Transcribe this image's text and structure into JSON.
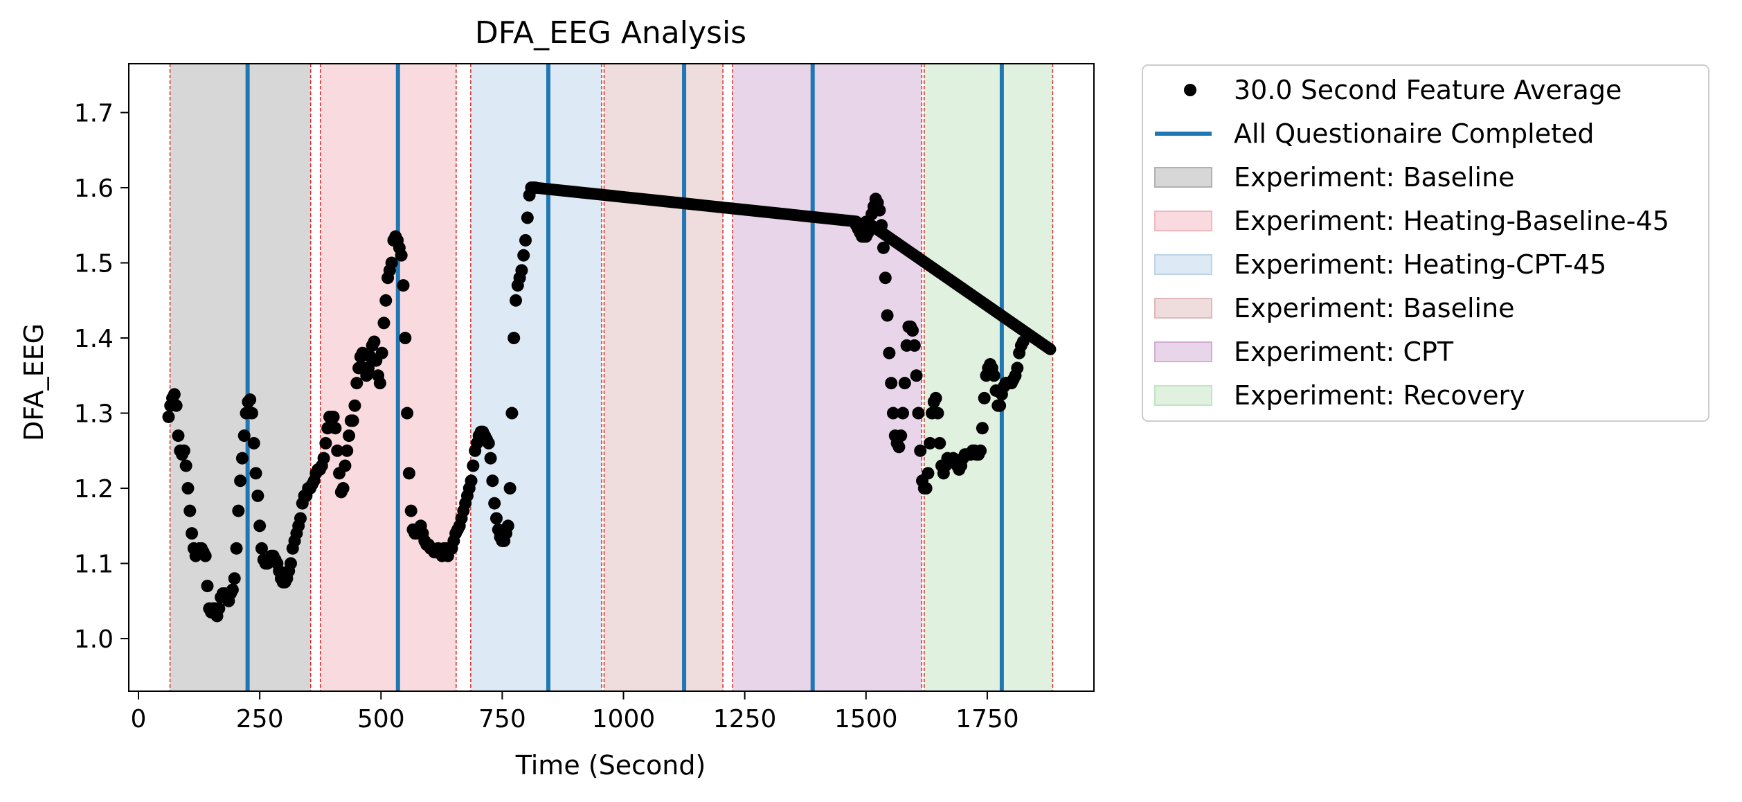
{
  "chart_data": {
    "type": "scatter",
    "title": "DFA_EEG Analysis",
    "xlabel": "Time (Second)",
    "ylabel": "DFA_EEG",
    "xlim": [
      -20,
      1970
    ],
    "ylim": [
      0.93,
      1.765
    ],
    "xticks": [
      0,
      250,
      500,
      750,
      1000,
      1250,
      1500,
      1750
    ],
    "xtick_labels": [
      "0",
      "250",
      "500",
      "750",
      "1000",
      "1250",
      "1500",
      "1750"
    ],
    "yticks": [
      1.0,
      1.1,
      1.2,
      1.3,
      1.4,
      1.5,
      1.6,
      1.7
    ],
    "ytick_labels": [
      "1.0",
      "1.1",
      "1.2",
      "1.3",
      "1.4",
      "1.5",
      "1.6",
      "1.7"
    ],
    "grid": false,
    "legend_position": "outside-right",
    "series": [
      {
        "name": "30.0 Second Feature Average",
        "kind": "scatter",
        "color": "#000000",
        "points": [
          [
            62,
            1.295
          ],
          [
            66,
            1.31
          ],
          [
            70,
            1.32
          ],
          [
            74,
            1.325
          ],
          [
            78,
            1.31
          ],
          [
            82,
            1.27
          ],
          [
            86,
            1.25
          ],
          [
            90,
            1.245
          ],
          [
            94,
            1.25
          ],
          [
            98,
            1.23
          ],
          [
            102,
            1.2
          ],
          [
            106,
            1.17
          ],
          [
            110,
            1.14
          ],
          [
            114,
            1.12
          ],
          [
            118,
            1.11
          ],
          [
            122,
            1.115
          ],
          [
            126,
            1.12
          ],
          [
            130,
            1.12
          ],
          [
            134,
            1.115
          ],
          [
            138,
            1.11
          ],
          [
            142,
            1.07
          ],
          [
            146,
            1.04
          ],
          [
            150,
            1.035
          ],
          [
            154,
            1.04
          ],
          [
            158,
            1.04
          ],
          [
            162,
            1.03
          ],
          [
            166,
            1.04
          ],
          [
            170,
            1.055
          ],
          [
            174,
            1.06
          ],
          [
            178,
            1.06
          ],
          [
            182,
            1.055
          ],
          [
            186,
            1.05
          ],
          [
            190,
            1.06
          ],
          [
            194,
            1.065
          ],
          [
            198,
            1.08
          ],
          [
            202,
            1.12
          ],
          [
            206,
            1.17
          ],
          [
            210,
            1.21
          ],
          [
            214,
            1.24
          ],
          [
            218,
            1.27
          ],
          [
            222,
            1.3
          ],
          [
            226,
            1.315
          ],
          [
            230,
            1.318
          ],
          [
            234,
            1.3
          ],
          [
            238,
            1.26
          ],
          [
            242,
            1.22
          ],
          [
            246,
            1.19
          ],
          [
            250,
            1.15
          ],
          [
            254,
            1.12
          ],
          [
            258,
            1.105
          ],
          [
            262,
            1.1
          ],
          [
            266,
            1.1
          ],
          [
            270,
            1.105
          ],
          [
            274,
            1.11
          ],
          [
            278,
            1.11
          ],
          [
            282,
            1.105
          ],
          [
            286,
            1.1
          ],
          [
            290,
            1.09
          ],
          [
            294,
            1.08
          ],
          [
            298,
            1.075
          ],
          [
            302,
            1.075
          ],
          [
            306,
            1.08
          ],
          [
            310,
            1.09
          ],
          [
            314,
            1.1
          ],
          [
            318,
            1.12
          ],
          [
            322,
            1.13
          ],
          [
            326,
            1.14
          ],
          [
            330,
            1.15
          ],
          [
            334,
            1.16
          ],
          [
            338,
            1.18
          ],
          [
            342,
            1.19
          ],
          [
            346,
            1.19
          ],
          [
            350,
            1.2
          ],
          [
            354,
            1.2
          ],
          [
            358,
            1.205
          ],
          [
            362,
            1.21
          ],
          [
            366,
            1.22
          ],
          [
            370,
            1.225
          ],
          [
            374,
            1.225
          ],
          [
            378,
            1.23
          ],
          [
            382,
            1.24
          ],
          [
            386,
            1.26
          ],
          [
            390,
            1.28
          ],
          [
            394,
            1.295
          ],
          [
            398,
            1.295
          ],
          [
            402,
            1.295
          ],
          [
            406,
            1.28
          ],
          [
            410,
            1.25
          ],
          [
            414,
            1.22
          ],
          [
            418,
            1.195
          ],
          [
            422,
            1.2
          ],
          [
            426,
            1.23
          ],
          [
            430,
            1.25
          ],
          [
            434,
            1.27
          ],
          [
            438,
            1.29
          ],
          [
            442,
            1.29
          ],
          [
            446,
            1.31
          ],
          [
            450,
            1.34
          ],
          [
            454,
            1.36
          ],
          [
            458,
            1.375
          ],
          [
            462,
            1.38
          ],
          [
            466,
            1.36
          ],
          [
            470,
            1.35
          ],
          [
            474,
            1.36
          ],
          [
            478,
            1.375
          ],
          [
            482,
            1.39
          ],
          [
            486,
            1.395
          ],
          [
            490,
            1.37
          ],
          [
            494,
            1.35
          ],
          [
            498,
            1.34
          ],
          [
            502,
            1.38
          ],
          [
            506,
            1.42
          ],
          [
            510,
            1.45
          ],
          [
            514,
            1.48
          ],
          [
            518,
            1.49
          ],
          [
            522,
            1.5
          ],
          [
            526,
            1.53
          ],
          [
            530,
            1.535
          ],
          [
            534,
            1.53
          ],
          [
            538,
            1.52
          ],
          [
            542,
            1.51
          ],
          [
            546,
            1.47
          ],
          [
            550,
            1.4
          ],
          [
            554,
            1.3
          ],
          [
            558,
            1.22
          ],
          [
            562,
            1.17
          ],
          [
            566,
            1.145
          ],
          [
            570,
            1.14
          ],
          [
            574,
            1.14
          ],
          [
            578,
            1.145
          ],
          [
            582,
            1.15
          ],
          [
            586,
            1.14
          ],
          [
            590,
            1.13
          ],
          [
            594,
            1.125
          ],
          [
            598,
            1.125
          ],
          [
            602,
            1.12
          ],
          [
            606,
            1.12
          ],
          [
            610,
            1.115
          ],
          [
            614,
            1.115
          ],
          [
            618,
            1.12
          ],
          [
            622,
            1.115
          ],
          [
            626,
            1.11
          ],
          [
            630,
            1.12
          ],
          [
            634,
            1.12
          ],
          [
            638,
            1.11
          ],
          [
            642,
            1.12
          ],
          [
            646,
            1.12
          ],
          [
            650,
            1.13
          ],
          [
            654,
            1.14
          ],
          [
            658,
            1.145
          ],
          [
            662,
            1.15
          ],
          [
            666,
            1.16
          ],
          [
            670,
            1.17
          ],
          [
            674,
            1.18
          ],
          [
            678,
            1.19
          ],
          [
            682,
            1.2
          ],
          [
            686,
            1.21
          ],
          [
            690,
            1.23
          ],
          [
            694,
            1.25
          ],
          [
            698,
            1.26
          ],
          [
            702,
            1.27
          ],
          [
            706,
            1.275
          ],
          [
            710,
            1.275
          ],
          [
            714,
            1.27
          ],
          [
            718,
            1.265
          ],
          [
            722,
            1.26
          ],
          [
            726,
            1.24
          ],
          [
            730,
            1.21
          ],
          [
            734,
            1.18
          ],
          [
            738,
            1.16
          ],
          [
            742,
            1.145
          ],
          [
            746,
            1.135
          ],
          [
            750,
            1.13
          ],
          [
            754,
            1.13
          ],
          [
            758,
            1.14
          ],
          [
            762,
            1.15
          ],
          [
            766,
            1.2
          ],
          [
            770,
            1.3
          ],
          [
            774,
            1.4
          ],
          [
            778,
            1.45
          ],
          [
            782,
            1.47
          ],
          [
            786,
            1.48
          ],
          [
            790,
            1.49
          ],
          [
            794,
            1.51
          ],
          [
            798,
            1.53
          ],
          [
            802,
            1.56
          ],
          [
            806,
            1.59
          ],
          [
            810,
            1.6
          ],
          [
            814,
            1.6
          ],
          [
            818,
            1.6
          ]
        ],
        "line_segments": [
          {
            "x0": 818,
            "y0": 1.6,
            "x1": 1480,
            "y1": 1.555
          },
          {
            "x0": 1500,
            "y0": 1.555,
            "x1": 1880,
            "y1": 1.385
          }
        ],
        "points_tail": [
          [
            1480,
            1.55
          ],
          [
            1484,
            1.545
          ],
          [
            1488,
            1.54
          ],
          [
            1492,
            1.535
          ],
          [
            1496,
            1.535
          ],
          [
            1500,
            1.535
          ],
          [
            1504,
            1.54
          ],
          [
            1508,
            1.55
          ],
          [
            1512,
            1.565
          ],
          [
            1516,
            1.575
          ],
          [
            1520,
            1.585
          ],
          [
            1524,
            1.58
          ],
          [
            1528,
            1.57
          ],
          [
            1532,
            1.55
          ],
          [
            1536,
            1.52
          ],
          [
            1540,
            1.48
          ],
          [
            1544,
            1.43
          ],
          [
            1548,
            1.38
          ],
          [
            1552,
            1.34
          ],
          [
            1556,
            1.3
          ],
          [
            1560,
            1.27
          ],
          [
            1564,
            1.26
          ],
          [
            1568,
            1.255
          ],
          [
            1572,
            1.27
          ],
          [
            1576,
            1.3
          ],
          [
            1580,
            1.34
          ],
          [
            1584,
            1.39
          ],
          [
            1588,
            1.415
          ],
          [
            1592,
            1.415
          ],
          [
            1596,
            1.41
          ],
          [
            1600,
            1.39
          ],
          [
            1604,
            1.35
          ],
          [
            1608,
            1.3
          ],
          [
            1612,
            1.25
          ],
          [
            1616,
            1.21
          ],
          [
            1620,
            1.2
          ],
          [
            1624,
            1.2
          ],
          [
            1628,
            1.22
          ],
          [
            1632,
            1.26
          ],
          [
            1636,
            1.3
          ],
          [
            1640,
            1.315
          ],
          [
            1644,
            1.32
          ],
          [
            1648,
            1.3
          ],
          [
            1652,
            1.26
          ],
          [
            1656,
            1.23
          ],
          [
            1660,
            1.22
          ],
          [
            1664,
            1.23
          ],
          [
            1668,
            1.24
          ],
          [
            1672,
            1.235
          ],
          [
            1676,
            1.235
          ],
          [
            1680,
            1.24
          ],
          [
            1684,
            1.235
          ],
          [
            1688,
            1.23
          ],
          [
            1692,
            1.225
          ],
          [
            1696,
            1.23
          ],
          [
            1700,
            1.24
          ],
          [
            1704,
            1.245
          ],
          [
            1708,
            1.245
          ],
          [
            1712,
            1.245
          ],
          [
            1716,
            1.245
          ],
          [
            1720,
            1.25
          ],
          [
            1724,
            1.25
          ],
          [
            1728,
            1.245
          ],
          [
            1732,
            1.245
          ],
          [
            1736,
            1.25
          ],
          [
            1740,
            1.28
          ],
          [
            1744,
            1.32
          ],
          [
            1748,
            1.35
          ],
          [
            1752,
            1.36
          ],
          [
            1756,
            1.365
          ],
          [
            1760,
            1.36
          ],
          [
            1764,
            1.35
          ],
          [
            1768,
            1.33
          ],
          [
            1772,
            1.31
          ],
          [
            1776,
            1.31
          ],
          [
            1780,
            1.325
          ],
          [
            1784,
            1.335
          ],
          [
            1788,
            1.34
          ],
          [
            1792,
            1.34
          ],
          [
            1796,
            1.34
          ],
          [
            1800,
            1.34
          ],
          [
            1804,
            1.345
          ],
          [
            1808,
            1.35
          ],
          [
            1812,
            1.36
          ],
          [
            1816,
            1.38
          ],
          [
            1820,
            1.39
          ],
          [
            1824,
            1.395
          ]
        ]
      },
      {
        "name": "All Questionaire Completed",
        "kind": "vline",
        "color": "#1f77b4",
        "x": [
          225,
          535,
          845,
          1125,
          1390,
          1780
        ]
      }
    ],
    "spans": [
      {
        "name": "Experiment: Baseline",
        "x0": 65,
        "x1": 355,
        "color": "#b0b0b0",
        "opacity": 0.5
      },
      {
        "name": "Experiment: Heating-Baseline-45",
        "x0": 375,
        "x1": 655,
        "color": "#f4b6bd",
        "opacity": 0.5
      },
      {
        "name": "Experiment: Heating-CPT-45",
        "x0": 685,
        "x1": 955,
        "color": "#bcd3ea",
        "opacity": 0.5
      },
      {
        "name": "Experiment: Baseline",
        "x0": 960,
        "x1": 1205,
        "color": "#dfb9b9",
        "opacity": 0.5
      },
      {
        "name": "Experiment: CPT",
        "x0": 1225,
        "x1": 1615,
        "color": "#d3acd6",
        "opacity": 0.5
      },
      {
        "name": "Experiment: Recovery",
        "x0": 1620,
        "x1": 1885,
        "color": "#c1e4c1",
        "opacity": 0.5
      }
    ],
    "boundary_lines": [
      65,
      355,
      375,
      655,
      685,
      955,
      960,
      1205,
      1225,
      1615,
      1620,
      1885
    ],
    "boundary_color": "#d62728",
    "legend": [
      {
        "label": "30.0 Second Feature Average",
        "marker": "dot",
        "color": "#000000"
      },
      {
        "label": "All Questionaire Completed",
        "marker": "line",
        "color": "#1f77b4"
      },
      {
        "label": "Experiment: Baseline",
        "marker": "patch",
        "color": "#b0b0b0"
      },
      {
        "label": "Experiment: Heating-Baseline-45",
        "marker": "patch",
        "color": "#f4b6bd"
      },
      {
        "label": "Experiment: Heating-CPT-45",
        "marker": "patch",
        "color": "#bcd3ea"
      },
      {
        "label": "Experiment: Baseline",
        "marker": "patch",
        "color": "#dfb9b9"
      },
      {
        "label": "Experiment: CPT",
        "marker": "patch",
        "color": "#d3acd6"
      },
      {
        "label": "Experiment: Recovery",
        "marker": "patch",
        "color": "#c1e4c1"
      }
    ]
  }
}
